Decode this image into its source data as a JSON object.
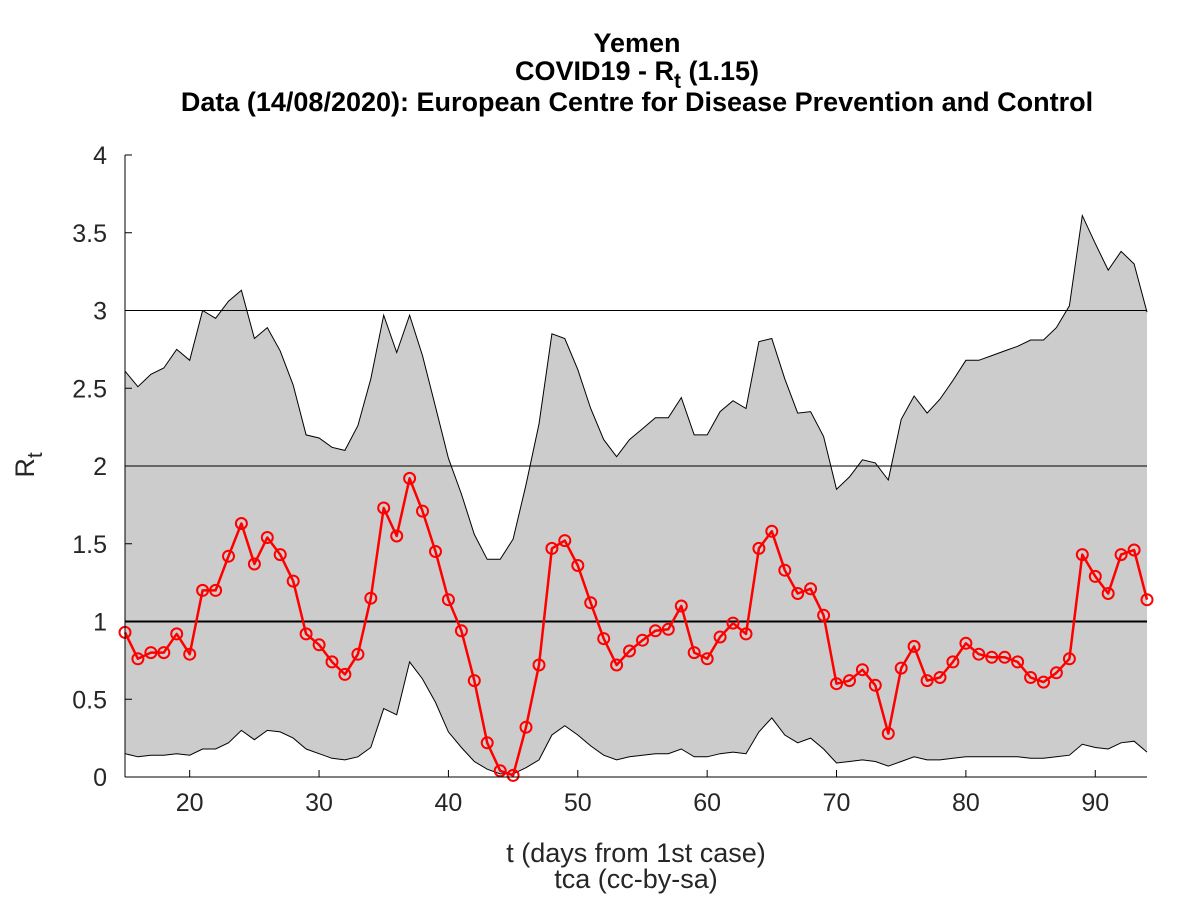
{
  "chart_data": {
    "type": "line",
    "title": "Yemen",
    "subtitle_prefix": "COVID19 - R",
    "subtitle_sub": "t",
    "subtitle_suffix": " (1.15)",
    "source": "Data (14/08/2020): European Centre for Disease Prevention and Control",
    "xlabel": "t (days from 1st case)",
    "credit": "tca (cc-by-sa)",
    "ylabel_main": "R",
    "ylabel_sub": "t",
    "xlim": [
      15,
      94
    ],
    "ylim": [
      0,
      4
    ],
    "xticks": [
      20,
      30,
      40,
      50,
      60,
      70,
      80,
      90
    ],
    "yticks": [
      0,
      0.5,
      1,
      1.5,
      2,
      2.5,
      3,
      3.5,
      4
    ],
    "ytick_labels": [
      "0",
      "0.5",
      "1",
      "1.5",
      "2",
      "2.5",
      "3",
      "3.5",
      "4"
    ],
    "reference_lines": [
      1,
      2,
      3
    ],
    "colors": {
      "series": "#ff0000",
      "band": "#cccccc",
      "band_edge": "#000000",
      "reference": "#000000"
    },
    "x": [
      15,
      16,
      17,
      18,
      19,
      20,
      21,
      22,
      23,
      24,
      25,
      26,
      27,
      28,
      29,
      30,
      31,
      32,
      33,
      34,
      35,
      36,
      37,
      38,
      39,
      40,
      41,
      42,
      43,
      44,
      45,
      46,
      47,
      48,
      49,
      50,
      51,
      52,
      53,
      54,
      55,
      56,
      57,
      58,
      59,
      60,
      61,
      62,
      63,
      64,
      65,
      66,
      67,
      68,
      69,
      70,
      71,
      72,
      73,
      74,
      75,
      76,
      77,
      78,
      79,
      80,
      81,
      82,
      83,
      84,
      85,
      86,
      87,
      88,
      89,
      90,
      91,
      92,
      93,
      94
    ],
    "series": [
      {
        "values": [
          0.93,
          0.76,
          0.8,
          0.8,
          0.92,
          0.79,
          1.2,
          1.2,
          1.42,
          1.63,
          1.37,
          1.54,
          1.43,
          1.26,
          0.92,
          0.85,
          0.74,
          0.66,
          0.79,
          1.15,
          1.73,
          1.55,
          1.92,
          1.71,
          1.45,
          1.14,
          0.94,
          0.62,
          0.22,
          0.04,
          0.01,
          0.32,
          0.72,
          1.47,
          1.52,
          1.36,
          1.12,
          0.89,
          0.72,
          0.81,
          0.88,
          0.94,
          0.95,
          1.1,
          0.8,
          0.76,
          0.9,
          0.99,
          0.92,
          1.47,
          1.58,
          1.33,
          1.18,
          1.21,
          1.04,
          0.6,
          0.62,
          0.69,
          0.59,
          0.28,
          0.7,
          0.84,
          0.62,
          0.64,
          0.74,
          0.86,
          0.79,
          0.77,
          0.77,
          0.74,
          0.64,
          0.61,
          0.67,
          0.76,
          1.43,
          1.29,
          1.18,
          1.43,
          1.46,
          1.14
        ]
      }
    ],
    "band_upper": [
      2.61,
      2.51,
      2.59,
      2.63,
      2.75,
      2.68,
      3.0,
      2.95,
      3.06,
      3.13,
      2.82,
      2.89,
      2.74,
      2.52,
      2.2,
      2.18,
      2.12,
      2.1,
      2.26,
      2.56,
      2.97,
      2.73,
      2.97,
      2.71,
      2.38,
      2.05,
      1.82,
      1.56,
      1.4,
      1.4,
      1.53,
      1.88,
      2.27,
      2.85,
      2.82,
      2.62,
      2.37,
      2.17,
      2.06,
      2.17,
      2.24,
      2.31,
      2.31,
      2.44,
      2.2,
      2.2,
      2.35,
      2.42,
      2.37,
      2.8,
      2.82,
      2.56,
      2.34,
      2.35,
      2.19,
      1.85,
      1.93,
      2.04,
      2.02,
      1.91,
      2.3,
      2.45,
      2.34,
      2.43,
      2.55,
      2.68,
      2.68,
      2.71,
      2.74,
      2.77,
      2.81,
      2.81,
      2.89,
      3.03,
      3.61,
      3.43,
      3.26,
      3.38,
      3.3,
      2.99
    ],
    "band_lower": [
      0.15,
      0.13,
      0.14,
      0.14,
      0.15,
      0.14,
      0.18,
      0.18,
      0.22,
      0.3,
      0.24,
      0.3,
      0.29,
      0.25,
      0.18,
      0.15,
      0.12,
      0.11,
      0.13,
      0.19,
      0.44,
      0.4,
      0.74,
      0.63,
      0.48,
      0.29,
      0.19,
      0.1,
      0.05,
      0.02,
      0.02,
      0.06,
      0.11,
      0.27,
      0.33,
      0.27,
      0.2,
      0.14,
      0.11,
      0.13,
      0.14,
      0.15,
      0.15,
      0.18,
      0.13,
      0.13,
      0.15,
      0.16,
      0.15,
      0.29,
      0.38,
      0.27,
      0.22,
      0.25,
      0.18,
      0.09,
      0.1,
      0.11,
      0.1,
      0.07,
      0.1,
      0.13,
      0.11,
      0.11,
      0.12,
      0.13,
      0.13,
      0.13,
      0.13,
      0.13,
      0.12,
      0.12,
      0.13,
      0.14,
      0.21,
      0.19,
      0.18,
      0.22,
      0.23,
      0.16
    ]
  }
}
